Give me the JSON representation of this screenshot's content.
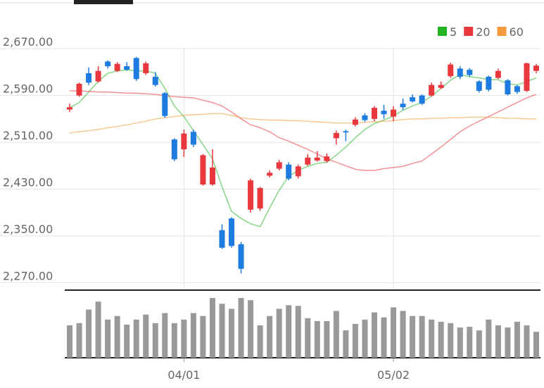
{
  "chart_data": {
    "type": "candlestick",
    "categories": [
      null,
      null,
      null,
      null,
      null,
      null,
      null,
      null,
      null,
      null,
      null,
      null,
      "04/01",
      null,
      null,
      null,
      null,
      null,
      null,
      null,
      null,
      null,
      null,
      null,
      null,
      null,
      null,
      null,
      null,
      null,
      null,
      null,
      null,
      null,
      "05/02",
      null,
      null,
      null,
      null,
      null,
      null,
      null,
      null,
      null,
      null,
      null,
      null,
      null,
      null,
      null
    ],
    "open": [
      2566,
      2590,
      2628,
      2614,
      2648,
      2632,
      2640,
      2654,
      2628,
      2622,
      2594,
      2515,
      2498,
      2528,
      2438,
      2438,
      2360,
      2380,
      2336,
      2395,
      2397,
      2453,
      2465,
      2472,
      2452,
      2472,
      2479,
      2478,
      2517,
      2529,
      2540,
      2556,
      2550,
      2564,
      2554,
      2576,
      2587,
      2590,
      2590,
      2603,
      2623,
      2636,
      2634,
      2614,
      2622,
      2620,
      2616,
      2606,
      2598,
      2632
    ],
    "high": [
      2576,
      2612,
      2638,
      2640,
      2650,
      2647,
      2647,
      2656,
      2648,
      2630,
      2596,
      2517,
      2532,
      2532,
      2490,
      2498,
      2370,
      2382,
      2340,
      2448,
      2434,
      2462,
      2480,
      2476,
      2472,
      2490,
      2495,
      2491,
      2530,
      2532,
      2553,
      2560,
      2572,
      2574,
      2572,
      2585,
      2592,
      2592,
      2612,
      2614,
      2646,
      2640,
      2637,
      2616,
      2624,
      2636,
      2618,
      2608,
      2646,
      2644
    ],
    "low": [
      2562,
      2588,
      2608,
      2612,
      2636,
      2630,
      2632,
      2615,
      2625,
      2605,
      2552,
      2478,
      2485,
      2502,
      2436,
      2436,
      2328,
      2330,
      2286,
      2390,
      2393,
      2450,
      2462,
      2445,
      2448,
      2470,
      2477,
      2475,
      2506,
      2512,
      2537,
      2545,
      2546,
      2550,
      2546,
      2565,
      2578,
      2574,
      2588,
      2601,
      2620,
      2618,
      2622,
      2595,
      2597,
      2618,
      2590,
      2593,
      2596,
      2628
    ],
    "close": [
      2570,
      2610,
      2612,
      2632,
      2640,
      2644,
      2634,
      2618,
      2645,
      2608,
      2555,
      2481,
      2525,
      2506,
      2488,
      2467,
      2330,
      2333,
      2294,
      2445,
      2432,
      2458,
      2476,
      2448,
      2469,
      2484,
      2484,
      2486,
      2526,
      2527,
      2549,
      2548,
      2569,
      2558,
      2566,
      2570,
      2580,
      2576,
      2608,
      2608,
      2643,
      2622,
      2625,
      2598,
      2600,
      2632,
      2592,
      2596,
      2645,
      2641
    ],
    "up_color": "#e8383d",
    "down_color": "#1e7be0",
    "series": [
      {
        "name": "5",
        "color": "#22b422",
        "values": [
          2569,
          2578,
          2596,
          2614,
          2628,
          2632,
          2634,
          2632,
          2632,
          2628,
          2602,
          2572,
          2554,
          2530,
          2506,
          2482,
          2434,
          2392,
          2380,
          2371,
          2366,
          2398,
          2428,
          2452,
          2462,
          2469,
          2474,
          2476,
          2488,
          2502,
          2518,
          2532,
          2542,
          2548,
          2555,
          2565,
          2572,
          2578,
          2589,
          2602,
          2616,
          2626,
          2622,
          2620,
          2617,
          2617,
          2610,
          2608,
          2614,
          2620
        ]
      },
      {
        "name": "20",
        "color": "#e8383d",
        "values": [
          2598,
          2598,
          2597,
          2596,
          2596,
          2595,
          2594,
          2594,
          2593,
          2592,
          2590,
          2588,
          2587,
          2586,
          2582,
          2578,
          2572,
          2562,
          2550,
          2540,
          2535,
          2528,
          2518,
          2512,
          2505,
          2498,
          2490,
          2482,
          2476,
          2470,
          2464,
          2462,
          2462,
          2465,
          2467,
          2469,
          2474,
          2478,
          2490,
          2502,
          2515,
          2528,
          2538,
          2546,
          2554,
          2562,
          2570,
          2578,
          2586,
          2592
        ]
      },
      {
        "name": "60",
        "color": "#f39a3c",
        "values": [
          2526,
          2528,
          2530,
          2532,
          2535,
          2537,
          2540,
          2543,
          2546,
          2550,
          2552,
          2554,
          2556,
          2557,
          2558,
          2559,
          2559,
          2556,
          2552,
          2550,
          2549,
          2548,
          2548,
          2547,
          2547,
          2546,
          2545,
          2544,
          2543,
          2543,
          2543,
          2544,
          2545,
          2546,
          2547,
          2549,
          2550,
          2550,
          2551,
          2551,
          2552,
          2552,
          2553,
          2553,
          2553,
          2552,
          2551,
          2551,
          2550,
          2550
        ]
      }
    ],
    "volume": {
      "color": "#999999",
      "ylim": [
        0,
        92
      ],
      "values": [
        45,
        48,
        67,
        78,
        53,
        58,
        46,
        53,
        60,
        48,
        62,
        48,
        53,
        62,
        58,
        83,
        75,
        68,
        83,
        80,
        45,
        58,
        68,
        73,
        72,
        55,
        51,
        51,
        65,
        38,
        47,
        53,
        63,
        56,
        70,
        65,
        58,
        58,
        53,
        50,
        48,
        42,
        43,
        38,
        53,
        45,
        42,
        50,
        45,
        36
      ]
    },
    "ylim": [
      2260,
      2705
    ],
    "yticks": [
      {
        "value": 2270,
        "label": "2,270.00"
      },
      {
        "value": 2350,
        "label": "2,350.00"
      },
      {
        "value": 2430,
        "label": "2,430.00"
      },
      {
        "value": 2510,
        "label": "2,510.00"
      },
      {
        "value": 2590,
        "label": "2,590.00"
      },
      {
        "value": 2670,
        "label": "2,670.00"
      }
    ],
    "grid": true
  }
}
